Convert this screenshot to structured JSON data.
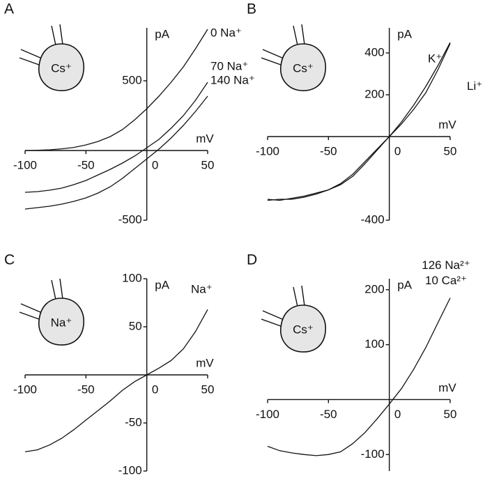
{
  "chart_data": [
    {
      "type": "line",
      "panel": "A",
      "cell_label": "Cs⁺",
      "xlabel": "mV",
      "ylabel": "pA",
      "x": [
        -100,
        -90,
        -80,
        -70,
        -60,
        -50,
        -40,
        -30,
        -20,
        -10,
        0,
        10,
        20,
        30,
        40,
        50
      ],
      "xlim": [
        -100,
        50
      ],
      "xticks": [
        -100,
        -50,
        0,
        50
      ],
      "ylim": [
        -500,
        880
      ],
      "yticks": [
        500,
        -500
      ],
      "series": [
        {
          "name": "0 Na⁺",
          "color": "#111111",
          "values": [
            0,
            2,
            5,
            12,
            22,
            40,
            65,
            100,
            150,
            220,
            300,
            390,
            490,
            600,
            730,
            870
          ]
        },
        {
          "name": "70 Na⁺",
          "color": "#111111",
          "values": [
            -300,
            -295,
            -285,
            -270,
            -245,
            -215,
            -175,
            -135,
            -90,
            -40,
            20,
            80,
            160,
            250,
            360,
            490
          ]
        },
        {
          "name": "140 Na⁺",
          "color": "#111111",
          "values": [
            -420,
            -410,
            -400,
            -385,
            -365,
            -340,
            -305,
            -260,
            -200,
            -130,
            -60,
            10,
            90,
            180,
            280,
            390
          ]
        }
      ]
    },
    {
      "type": "line",
      "panel": "B",
      "cell_label": "Cs⁺",
      "xlabel": "mV",
      "ylabel": "pA",
      "x": [
        -100,
        -90,
        -80,
        -70,
        -60,
        -50,
        -40,
        -30,
        -20,
        -10,
        0,
        10,
        20,
        30,
        40,
        50
      ],
      "xlim": [
        -100,
        50
      ],
      "xticks": [
        -100,
        -50,
        0,
        50
      ],
      "ylim": [
        -400,
        520
      ],
      "yticks": [
        400,
        200,
        -400
      ],
      "series": [
        {
          "name": "K⁺",
          "color": "#111111",
          "values": [
            -300,
            -305,
            -295,
            -285,
            -270,
            -255,
            -230,
            -190,
            -130,
            -65,
            0,
            70,
            150,
            240,
            340,
            450
          ]
        },
        {
          "name": "Li⁺",
          "color": "#111111",
          "values": [
            -305,
            -300,
            -300,
            -290,
            -275,
            -255,
            -225,
            -180,
            -120,
            -60,
            0,
            60,
            130,
            210,
            320,
            445
          ]
        }
      ]
    },
    {
      "type": "line",
      "panel": "C",
      "cell_label": "Na⁺",
      "xlabel": "mV",
      "ylabel": "pA",
      "x": [
        -100,
        -90,
        -80,
        -70,
        -60,
        -50,
        -40,
        -30,
        -20,
        -10,
        0,
        10,
        20,
        30,
        40,
        50
      ],
      "xlim": [
        -100,
        50
      ],
      "xticks": [
        -100,
        -50,
        0,
        50
      ],
      "ylim": [
        -100,
        100
      ],
      "yticks": [
        100,
        50,
        -50,
        -100
      ],
      "series": [
        {
          "name": "Na⁺",
          "color": "#111111",
          "values": [
            -80,
            -78,
            -73,
            -66,
            -57,
            -47,
            -37,
            -27,
            -16,
            -7,
            0,
            7,
            15,
            27,
            45,
            68
          ]
        }
      ]
    },
    {
      "type": "line",
      "panel": "D",
      "cell_label": "Cs⁺",
      "xlabel": "mV",
      "ylabel": "pA",
      "x": [
        -100,
        -90,
        -80,
        -70,
        -60,
        -50,
        -40,
        -30,
        -20,
        -10,
        0,
        10,
        20,
        30,
        40,
        50
      ],
      "xlim": [
        -100,
        50
      ],
      "xticks": [
        -100,
        -50,
        0,
        50
      ],
      "ylim": [
        -130,
        220
      ],
      "yticks": [
        200,
        100,
        -100
      ],
      "series": [
        {
          "name": [
            "126 Na²⁺",
            "10 Ca²⁺"
          ],
          "color": "#111111",
          "values": [
            -85,
            -93,
            -97,
            -100,
            -102,
            -100,
            -95,
            -80,
            -60,
            -35,
            -8,
            20,
            55,
            95,
            140,
            185
          ]
        }
      ]
    }
  ]
}
